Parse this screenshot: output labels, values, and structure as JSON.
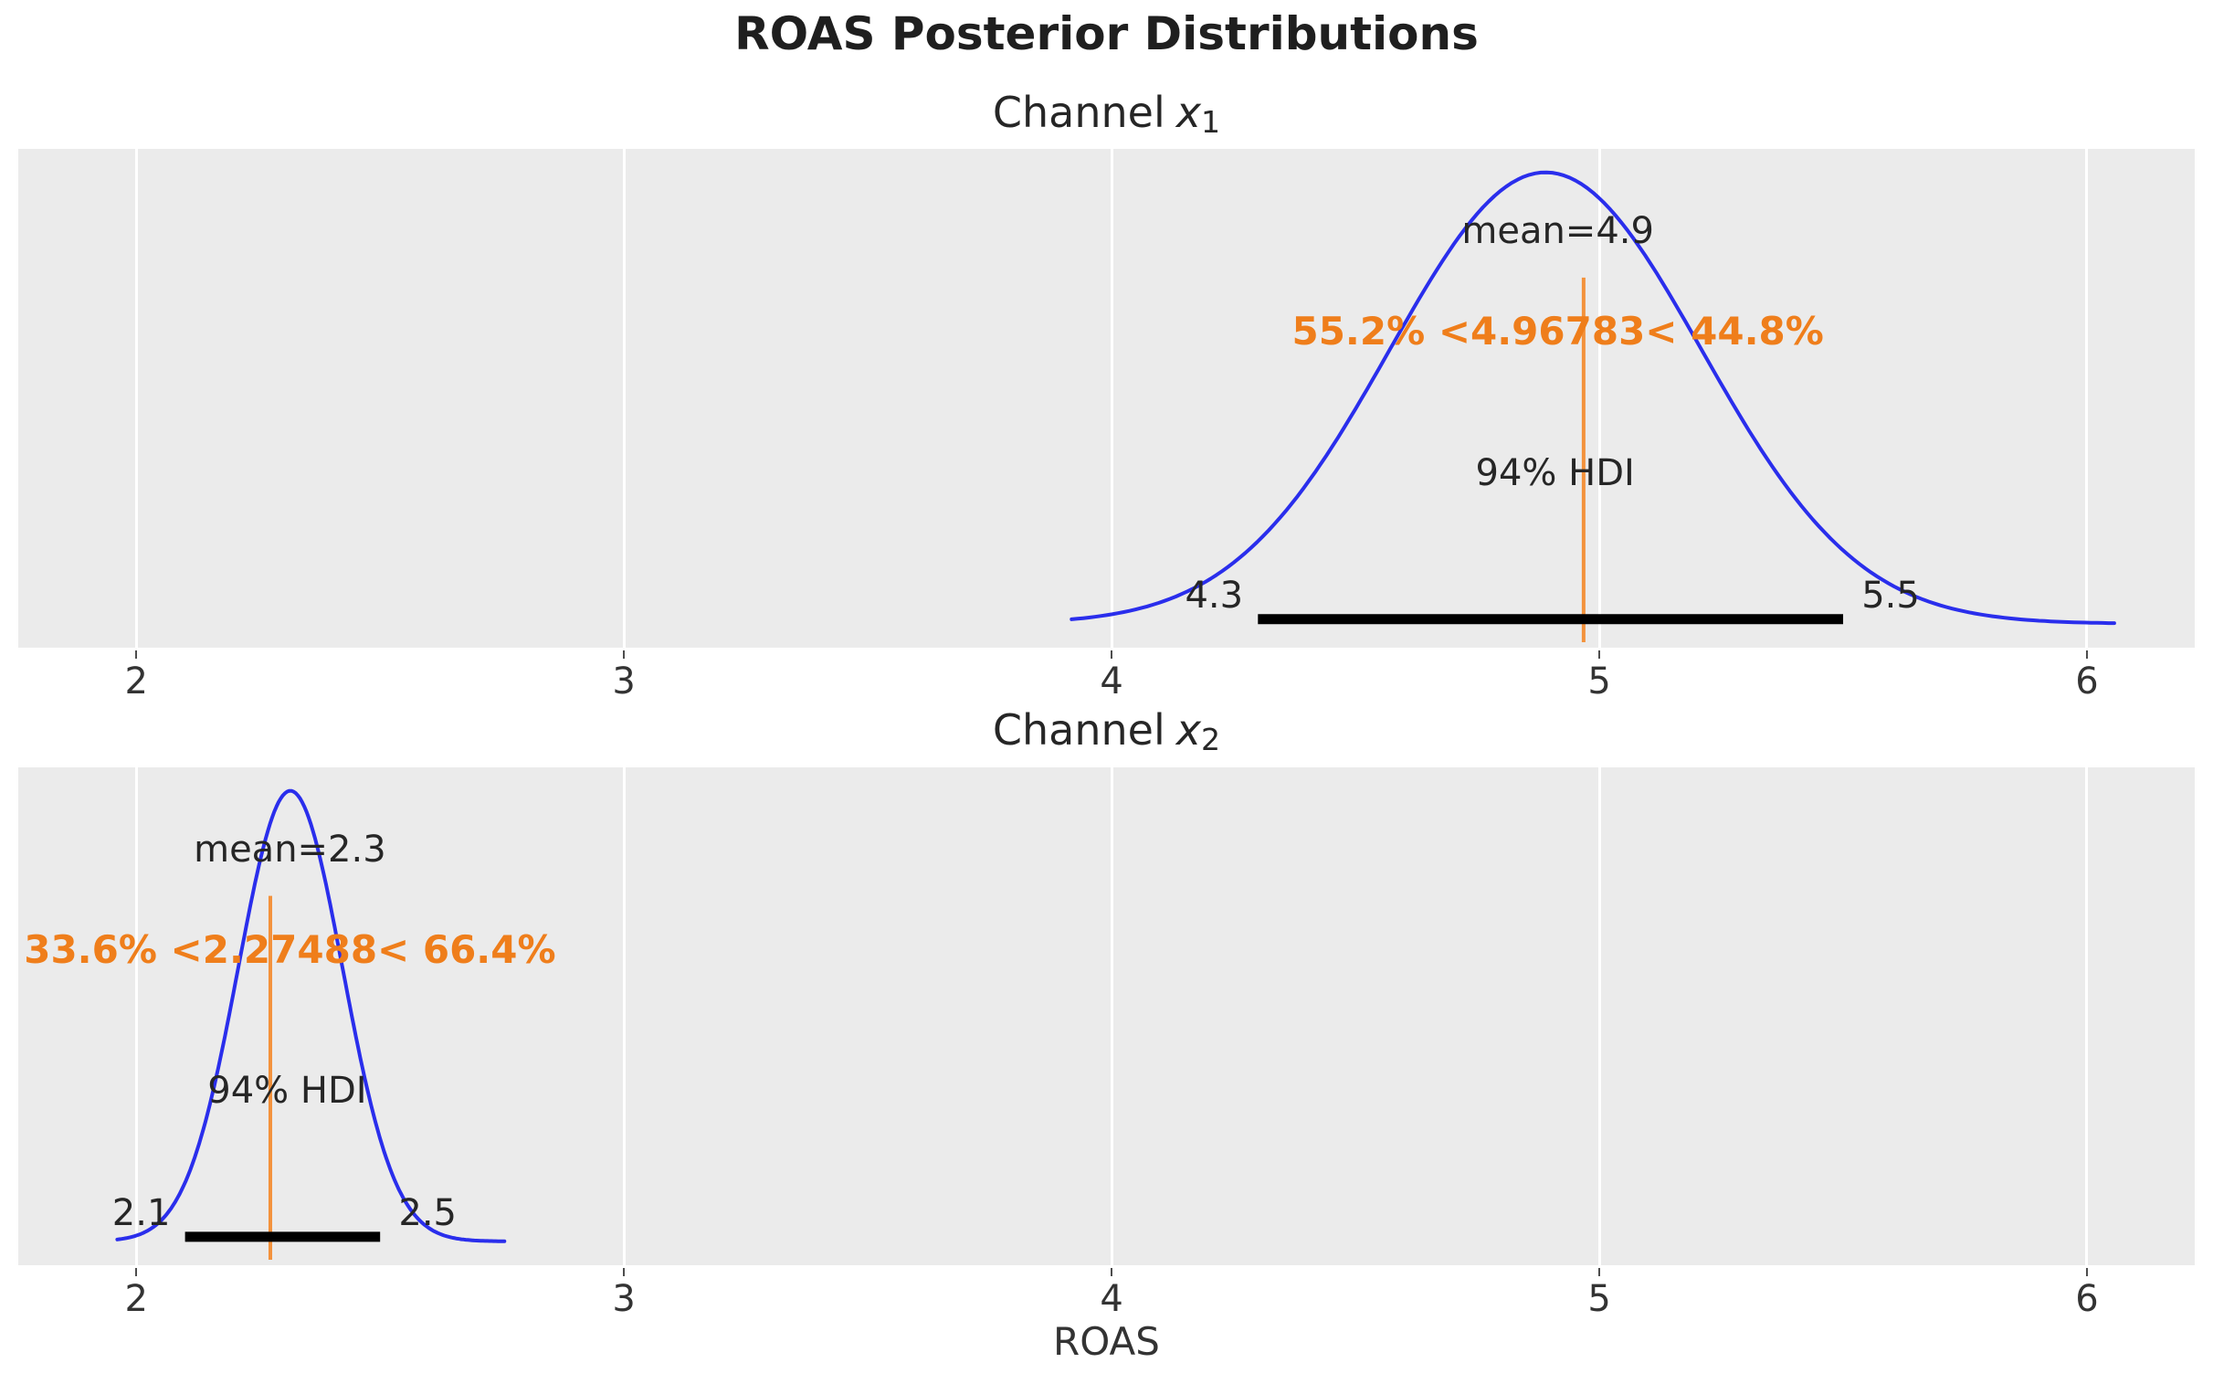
{
  "figure": {
    "title": "ROAS Posterior Distributions",
    "xlabel": "ROAS",
    "colors": {
      "curve": "#2a2eec",
      "ref_line": "#f5831e",
      "ref_text": "#ef7e1b",
      "hdi_bar": "#000000",
      "panel_bg": "#ebebeb",
      "gridline": "#ffffff",
      "text": "#262626"
    }
  },
  "chart_data": [
    {
      "type": "kde-posterior",
      "title_prefix": "Channel",
      "var_letter": "x",
      "var_subscript": "1",
      "mean": 4.9,
      "mean_label": "mean=4.9",
      "ref_value": 4.96783,
      "ref_interval_label": "55.2% <4.96783< 44.8%",
      "pct_below": "55.2%",
      "pct_above": "44.8%",
      "hdi_label": "94% HDI",
      "hdi_low": 4.3,
      "hdi_high": 5.5,
      "hdi_low_label": "4.3",
      "hdi_high_label": "5.5",
      "peak": 4.89,
      "sigma": 0.32,
      "curve_range": [
        3.918,
        6.056
      ],
      "x_range": [
        1.758,
        6.221
      ],
      "x_tick_values": [
        2,
        3,
        4,
        5,
        6
      ],
      "x_tick_labels": [
        "2",
        "3",
        "4",
        "5",
        "6"
      ]
    },
    {
      "type": "kde-posterior",
      "title_prefix": "Channel",
      "var_letter": "x",
      "var_subscript": "2",
      "mean": 2.3,
      "mean_label": "mean=2.3",
      "ref_value": 2.27488,
      "ref_interval_label": "33.6% <2.27488< 66.4%",
      "pct_below": "33.6%",
      "pct_above": "66.4%",
      "hdi_label": "94% HDI",
      "hdi_low": 2.1,
      "hdi_high": 2.5,
      "hdi_low_label": "2.1",
      "hdi_high_label": "2.5",
      "peak": 2.316,
      "sigma": 0.107,
      "curve_range": [
        1.961,
        2.755
      ],
      "x_range": [
        1.758,
        6.221
      ],
      "x_tick_values": [
        2,
        3,
        4,
        5,
        6
      ],
      "x_tick_labels": [
        "2",
        "3",
        "4",
        "5",
        "6"
      ]
    }
  ]
}
